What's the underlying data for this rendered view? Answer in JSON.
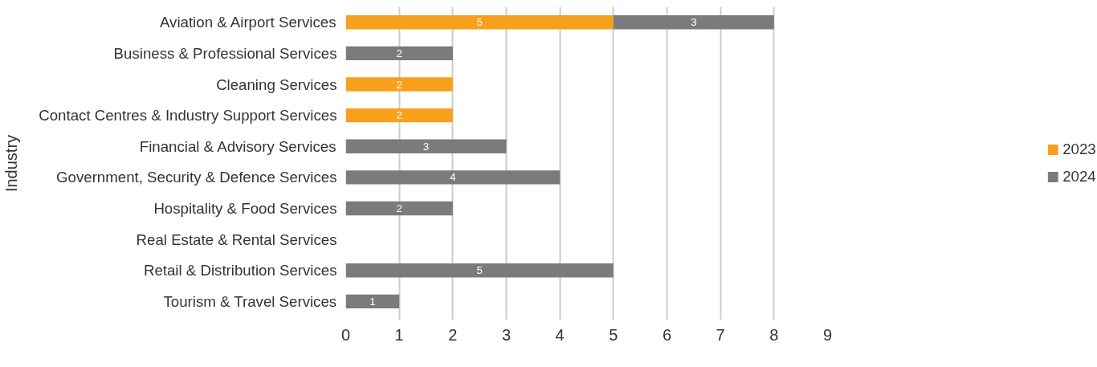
{
  "chart_data": {
    "type": "bar",
    "orientation": "horizontal",
    "stacked": true,
    "ylabel": "Industry",
    "categories": [
      "Aviation & Airport Services",
      "Business & Professional Services",
      "Cleaning Services",
      "Contact Centres & Industry Support Services",
      "Financial & Advisory Services",
      "Government, Security & Defence Services",
      "Hospitality & Food Services",
      "Real Estate & Rental Services",
      "Retail & Distribution Services",
      "Tourism & Travel Services"
    ],
    "series": [
      {
        "name": "2023",
        "color": "#f8a01c",
        "values": [
          5,
          null,
          2,
          2,
          null,
          null,
          null,
          null,
          null,
          null
        ]
      },
      {
        "name": "2024",
        "color": "#7b7b7e",
        "values": [
          3,
          2,
          null,
          null,
          3,
          4,
          2,
          null,
          5,
          1
        ]
      }
    ],
    "xlim": [
      0,
      9
    ],
    "xticks": [
      0,
      1,
      2,
      3,
      4,
      5,
      6,
      7,
      8,
      9
    ],
    "grid": "x",
    "legend": "right",
    "data_labels": true
  }
}
